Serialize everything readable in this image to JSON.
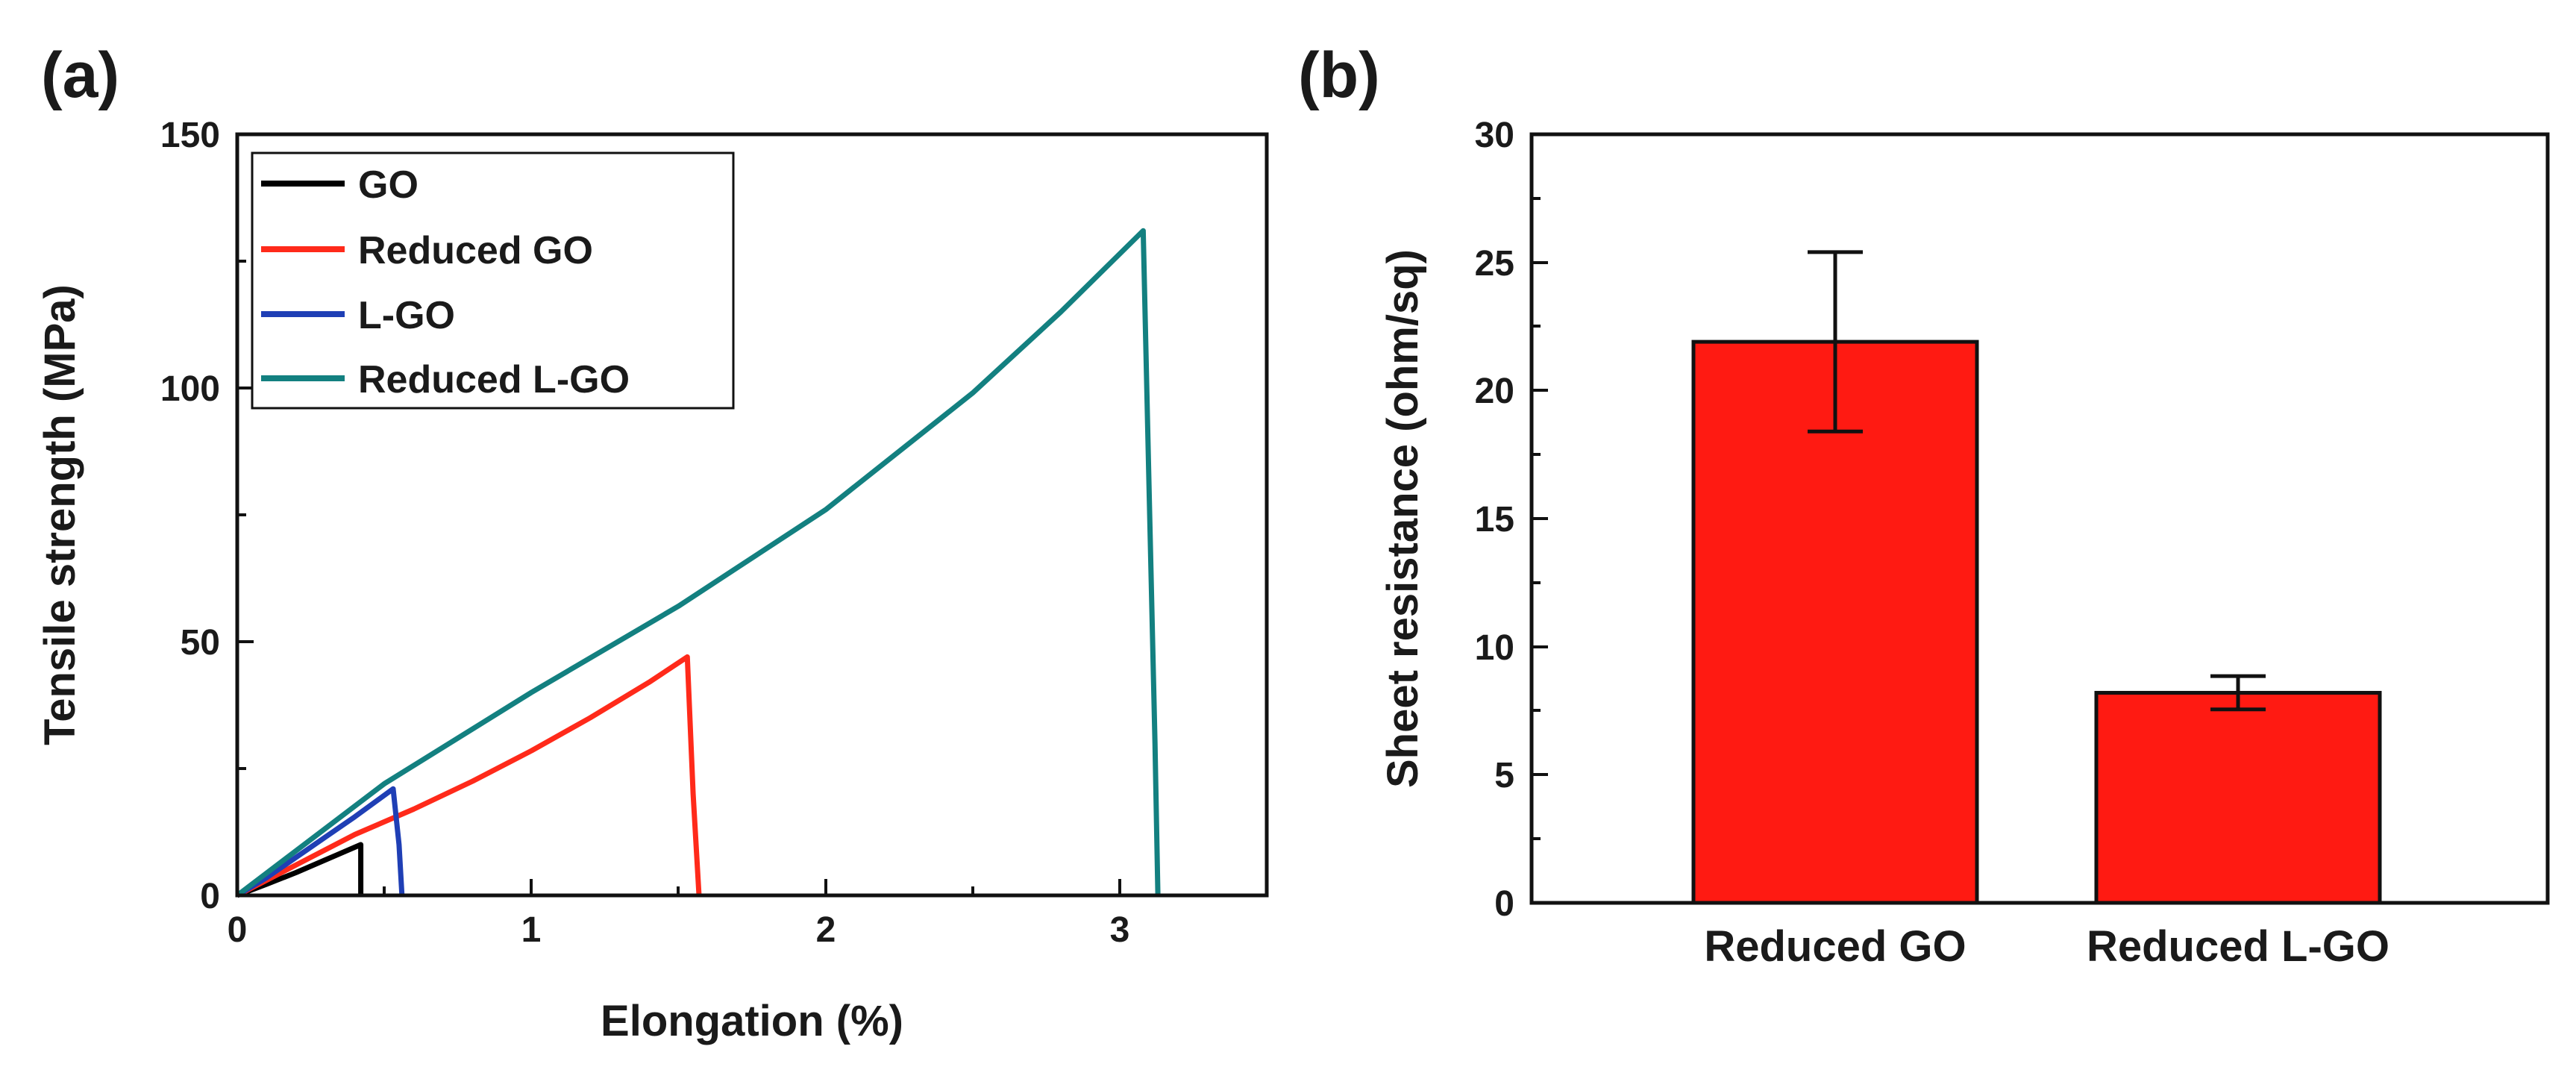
{
  "chart_data": [
    {
      "type": "line",
      "panel_label": "(a)",
      "xlabel": "Elongation (%)",
      "ylabel": "Tensile strength (MPa)",
      "xlim": [
        0,
        3.5
      ],
      "ylim": [
        0,
        150
      ],
      "xticks": [
        0,
        1,
        2,
        3
      ],
      "xtick_labels": [
        "0",
        "1",
        "2",
        "3"
      ],
      "yticks": [
        0,
        50,
        100,
        150
      ],
      "ytick_labels": [
        "0",
        "50",
        "100",
        "150"
      ],
      "legend_position": "top-left",
      "series": [
        {
          "name": "GO",
          "color": "#000000",
          "points": [
            [
              0,
              0
            ],
            [
              0.1,
              2.2
            ],
            [
              0.2,
              4.5
            ],
            [
              0.3,
              7
            ],
            [
              0.42,
              10
            ],
            [
              0.42,
              0
            ]
          ]
        },
        {
          "name": "Reduced GO",
          "color": "#ff2a1a",
          "points": [
            [
              0,
              0
            ],
            [
              0.2,
              6
            ],
            [
              0.4,
              12
            ],
            [
              0.6,
              17
            ],
            [
              0.8,
              22.5
            ],
            [
              1.0,
              28.5
            ],
            [
              1.2,
              35
            ],
            [
              1.4,
              42
            ],
            [
              1.53,
              47
            ],
            [
              1.55,
              20
            ],
            [
              1.57,
              0
            ]
          ]
        },
        {
          "name": "L-GO",
          "color": "#1f3fb5",
          "points": [
            [
              0,
              0
            ],
            [
              0.1,
              3.5
            ],
            [
              0.2,
              7.5
            ],
            [
              0.3,
              11.5
            ],
            [
              0.4,
              15.5
            ],
            [
              0.53,
              21
            ],
            [
              0.55,
              10
            ],
            [
              0.56,
              0
            ]
          ]
        },
        {
          "name": "Reduced L-GO",
          "color": "#138080",
          "points": [
            [
              0,
              0
            ],
            [
              0.5,
              22
            ],
            [
              1.0,
              40
            ],
            [
              1.5,
              57
            ],
            [
              2.0,
              76
            ],
            [
              2.5,
              99
            ],
            [
              2.8,
              115
            ],
            [
              3.08,
              131
            ],
            [
              3.1,
              80
            ],
            [
              3.12,
              30
            ],
            [
              3.13,
              0
            ]
          ]
        }
      ]
    },
    {
      "type": "bar",
      "panel_label": "(b)",
      "ylabel": "Sheet resistance (ohm/sq)",
      "xlabel": "",
      "ylim": [
        0,
        30
      ],
      "yticks": [
        0,
        5,
        10,
        15,
        20,
        25,
        30
      ],
      "ytick_labels": [
        "0",
        "5",
        "10",
        "15",
        "20",
        "25",
        "30"
      ],
      "categories": [
        "Reduced GO",
        "Reduced L-GO"
      ],
      "values": [
        21.9,
        8.2
      ],
      "errors": [
        3.5,
        0.65
      ],
      "bar_color": "#ff1a12"
    }
  ]
}
